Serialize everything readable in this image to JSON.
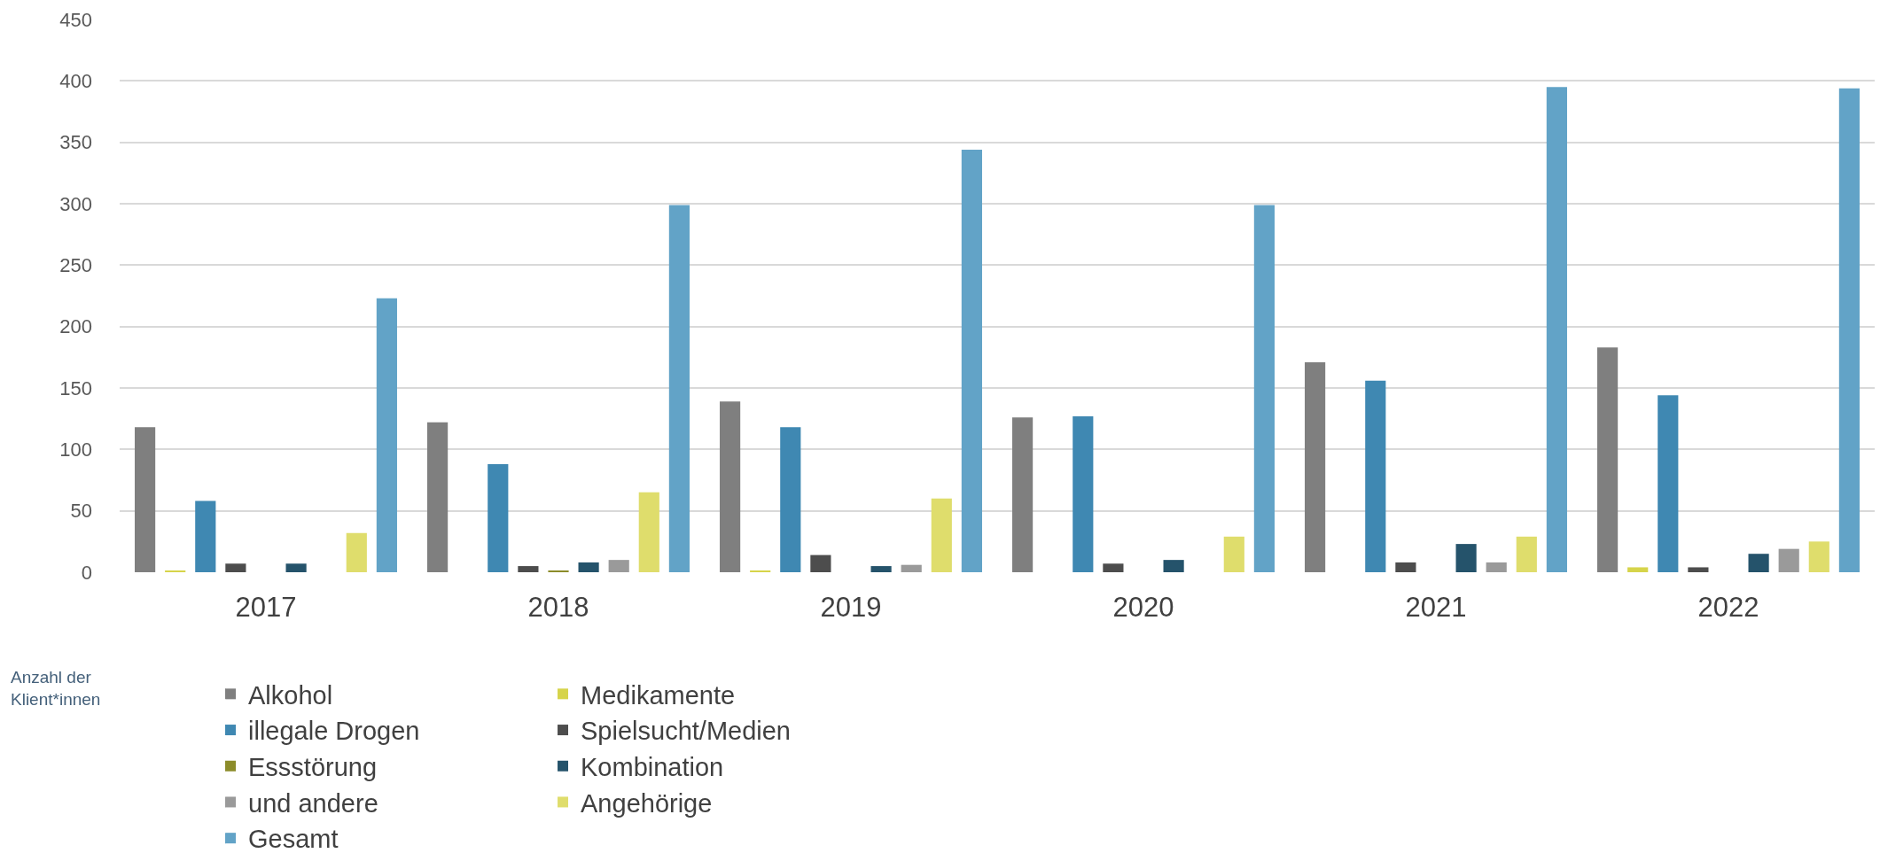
{
  "chart_data": {
    "type": "bar",
    "categories": [
      "2017",
      "2018",
      "2019",
      "2020",
      "2021",
      "2022"
    ],
    "series": [
      {
        "name": "Alkohol",
        "color": "#7f7f7f",
        "values": [
          118,
          122,
          139,
          126,
          171,
          183
        ]
      },
      {
        "name": "Medikamente",
        "color": "#d6d44a",
        "values": [
          1,
          0,
          1,
          0,
          0,
          4
        ]
      },
      {
        "name": "illegale Drogen",
        "color": "#3f88b2",
        "values": [
          58,
          88,
          118,
          127,
          156,
          144
        ]
      },
      {
        "name": "Spielsucht/Medien",
        "color": "#4d4d4d",
        "values": [
          7,
          5,
          14,
          7,
          8,
          4
        ]
      },
      {
        "name": "Essstörung",
        "color": "#8c8c2a",
        "values": [
          0,
          1,
          0,
          0,
          0,
          0
        ]
      },
      {
        "name": "Kombination",
        "color": "#25536b",
        "values": [
          7,
          8,
          5,
          10,
          23,
          15
        ]
      },
      {
        "name": "und andere",
        "color": "#9a9a9a",
        "values": [
          0,
          10,
          6,
          0,
          8,
          19
        ]
      },
      {
        "name": "Angehörige",
        "color": "#dfdd6c",
        "values": [
          32,
          65,
          60,
          29,
          29,
          25
        ]
      },
      {
        "name": "Gesamt",
        "color": "#62a3c7",
        "values": [
          223,
          299,
          344,
          299,
          395,
          394
        ]
      }
    ],
    "ylim": [
      0,
      450
    ],
    "yticks": [
      0,
      50,
      100,
      150,
      200,
      250,
      300,
      350,
      400,
      450
    ],
    "grid": "y",
    "legend": "bottom",
    "annotations": [
      "Anzahl der Klient*innen"
    ]
  }
}
